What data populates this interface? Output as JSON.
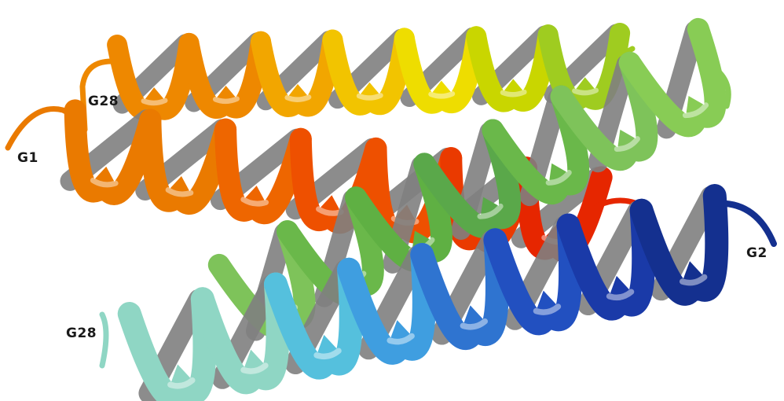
{
  "labels": {
    "g1": "G1",
    "g28_top": "G28",
    "g2": "G2",
    "g28_bottom": "G28"
  },
  "helices": [
    {
      "name": "helix-top-back",
      "colors": [
        "#ee8800",
        "#f2a600",
        "#f2c400",
        "#eedd00",
        "#c9d600",
        "#9fcc20"
      ]
    },
    {
      "name": "helix-middle",
      "colors": [
        "#ea7a00",
        "#ee6600",
        "#ee5000",
        "#ea3a00",
        "#e62600"
      ]
    },
    {
      "name": "helix-green",
      "colors": [
        "#7ec35a",
        "#6ab84a",
        "#5fb043",
        "#5aa84a",
        "#6ab84a",
        "#7ec35a",
        "#88cc55"
      ]
    },
    {
      "name": "helix-bottom-front",
      "colors": [
        "#8fd6c4",
        "#55c0dd",
        "#3f9ee0",
        "#2f74d0",
        "#2250c0",
        "#1a3aa8",
        "#14308f"
      ]
    }
  ],
  "strand_color": "#808080"
}
